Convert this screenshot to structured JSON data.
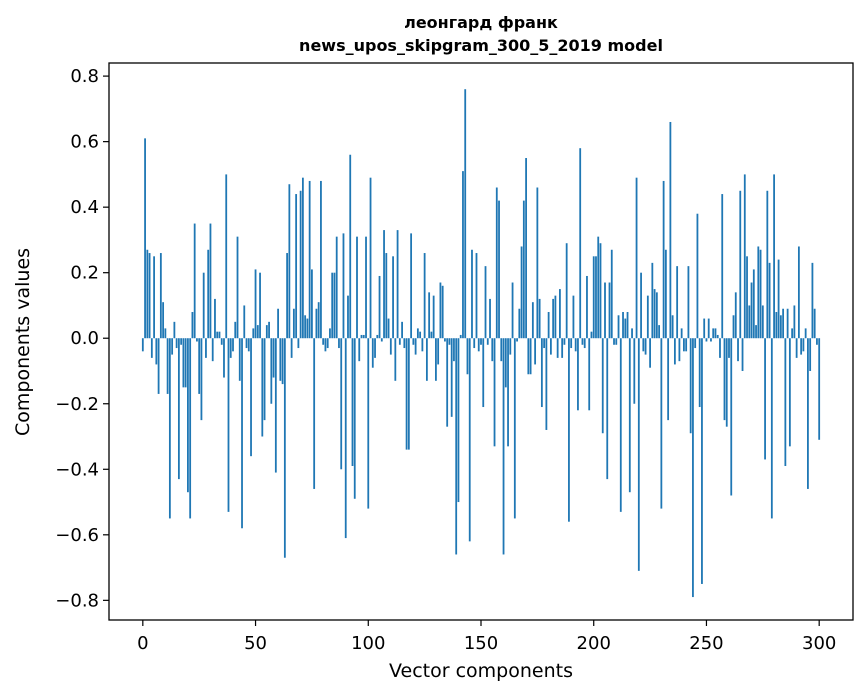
{
  "chart_data": {
    "type": "bar",
    "title_line1": "леонгард франк",
    "title_line2": "news_upos_skipgram_300_5_2019 model",
    "xlabel": "Vector components",
    "ylabel": "Components values",
    "xlim": [
      -15,
      315
    ],
    "ylim": [
      -0.86,
      0.84
    ],
    "xticks": [
      0,
      50,
      100,
      150,
      200,
      250,
      300
    ],
    "xtick_labels": [
      "0",
      "50",
      "100",
      "150",
      "200",
      "250",
      "300"
    ],
    "yticks": [
      0.8,
      0.6,
      0.4,
      0.2,
      0.0,
      -0.2,
      -0.4,
      -0.6,
      -0.8
    ],
    "ytick_labels": [
      "0.8",
      "0.6",
      "0.4",
      "0.2",
      "0.0",
      "−0.2",
      "−0.4",
      "−0.6",
      "−0.8"
    ],
    "bar_color": "#1f77b4",
    "grid": false,
    "values": [
      -0.04,
      0.61,
      0.27,
      0.26,
      -0.06,
      0.25,
      -0.08,
      -0.17,
      0.26,
      0.11,
      0.03,
      -0.17,
      -0.55,
      -0.05,
      0.05,
      -0.03,
      -0.43,
      -0.02,
      -0.15,
      -0.15,
      -0.47,
      -0.55,
      0.08,
      0.35,
      -0.01,
      -0.17,
      -0.25,
      0.2,
      -0.06,
      0.27,
      0.35,
      -0.07,
      0.12,
      0.02,
      0.02,
      -0.02,
      -0.12,
      0.5,
      -0.53,
      -0.06,
      -0.04,
      0.05,
      0.31,
      -0.13,
      -0.58,
      0.1,
      -0.03,
      -0.04,
      -0.36,
      0.03,
      0.21,
      0.04,
      0.2,
      -0.3,
      -0.25,
      0.04,
      0.05,
      -0.2,
      -0.12,
      -0.41,
      0.09,
      -0.13,
      -0.14,
      -0.67,
      0.26,
      0.47,
      -0.06,
      0.09,
      0.44,
      -0.03,
      0.45,
      0.49,
      0.07,
      0.06,
      0.48,
      0.21,
      -0.46,
      0.09,
      0.11,
      0.48,
      -0.02,
      -0.04,
      -0.03,
      0.03,
      0.2,
      0.2,
      0.31,
      -0.03,
      -0.4,
      0.32,
      -0.61,
      0.13,
      0.56,
      -0.39,
      -0.49,
      0.31,
      -0.07,
      0.01,
      0.01,
      0.31,
      -0.52,
      0.49,
      -0.09,
      -0.06,
      0.01,
      0.19,
      -0.01,
      0.33,
      0.26,
      0.06,
      -0.05,
      0.25,
      -0.13,
      0.33,
      -0.02,
      0.05,
      -0.03,
      -0.34,
      -0.34,
      0.32,
      -0.02,
      -0.05,
      0.03,
      0.02,
      -0.04,
      0.26,
      -0.13,
      0.14,
      0.02,
      0.13,
      -0.13,
      -0.08,
      0.17,
      0.16,
      -0.01,
      -0.27,
      -0.02,
      -0.24,
      -0.07,
      -0.66,
      -0.5,
      0.01,
      0.51,
      0.76,
      -0.11,
      -0.62,
      0.27,
      -0.03,
      0.26,
      -0.04,
      -0.02,
      -0.21,
      0.22,
      -0.02,
      0.12,
      -0.07,
      -0.33,
      0.46,
      0.42,
      -0.07,
      -0.66,
      -0.15,
      -0.33,
      -0.05,
      0.17,
      -0.55,
      -0.01,
      0.09,
      0.28,
      0.42,
      0.55,
      -0.11,
      -0.11,
      0.11,
      -0.08,
      0.46,
      0.12,
      -0.21,
      -0.03,
      -0.28,
      0.08,
      -0.05,
      0.12,
      0.13,
      -0.06,
      0.15,
      -0.06,
      -0.02,
      0.29,
      -0.56,
      -0.03,
      0.13,
      -0.04,
      -0.22,
      0.58,
      -0.02,
      -0.03,
      0.19,
      -0.22,
      0.02,
      0.25,
      0.25,
      0.31,
      0.29,
      -0.29,
      0.17,
      -0.43,
      0.17,
      0.27,
      -0.02,
      -0.02,
      0.07,
      -0.53,
      0.08,
      0.06,
      0.08,
      -0.47,
      0.03,
      -0.2,
      0.49,
      -0.71,
      0.2,
      -0.04,
      -0.05,
      0.13,
      -0.09,
      0.23,
      0.15,
      0.14,
      0.04,
      -0.52,
      0.48,
      0.27,
      -0.25,
      0.66,
      0.07,
      -0.08,
      0.22,
      -0.07,
      0.03,
      -0.04,
      -0.04,
      0.22,
      -0.29,
      -0.79,
      -0.03,
      0.38,
      -0.21,
      -0.75,
      0.06,
      -0.01,
      0.06,
      -0.01,
      0.03,
      0.03,
      0.01,
      -0.06,
      0.44,
      -0.25,
      -0.27,
      -0.06,
      -0.48,
      0.07,
      0.14,
      -0.07,
      0.45,
      -0.1,
      0.5,
      0.25,
      0.1,
      0.17,
      0.21,
      0.04,
      0.28,
      0.27,
      0.1,
      -0.37,
      0.45,
      0.23,
      -0.55,
      0.5,
      0.08,
      0.24,
      0.07,
      0.09,
      -0.39,
      0.09,
      -0.33,
      0.03,
      0.1,
      -0.06,
      0.28,
      -0.05,
      -0.04,
      0.03,
      -0.46,
      -0.1,
      0.23,
      0.09,
      -0.02,
      -0.31
    ]
  }
}
